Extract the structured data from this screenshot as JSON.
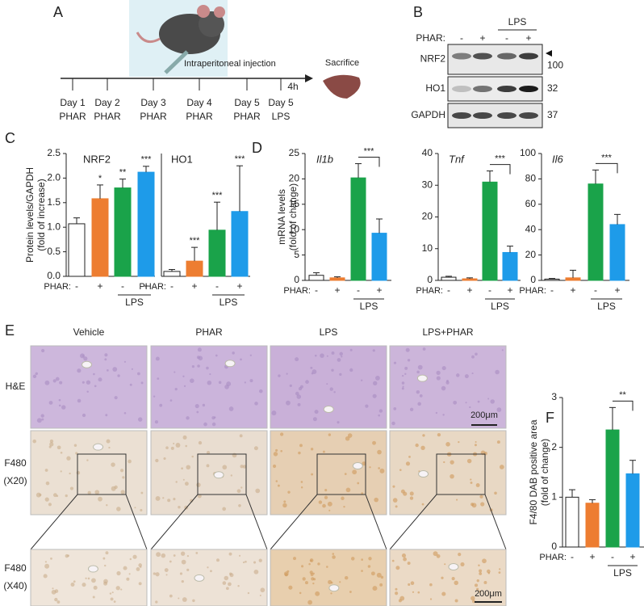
{
  "panel_labels": [
    "A",
    "B",
    "C",
    "D",
    "E",
    "F"
  ],
  "schematic": {
    "days": [
      {
        "day": "Day 1",
        "treatment": "PHAR"
      },
      {
        "day": "Day 2",
        "treatment": "PHAR"
      },
      {
        "day": "Day 3",
        "treatment": "PHAR"
      },
      {
        "day": "Day 4",
        "treatment": "PHAR"
      },
      {
        "day": "Day 5",
        "treatment": "PHAR"
      },
      {
        "day": "Day 5",
        "treatment": "LPS"
      }
    ],
    "injection": "Intraperitoneal injection",
    "interval": "4h",
    "endpoint": "Sacrifice"
  },
  "blot": {
    "treatment_header": "LPS",
    "row_label": "PHAR:",
    "lanes": [
      "-",
      "+",
      "-",
      "+"
    ],
    "bands": [
      {
        "name": "NRF2",
        "size": "100"
      },
      {
        "name": "HO1",
        "size": "32"
      },
      {
        "name": "GAPDH",
        "size": "37"
      }
    ]
  },
  "histology": {
    "columns": [
      "Vehicle",
      "PHAR",
      "LPS",
      "LPS+PHAR"
    ],
    "rows": [
      [
        "H&E"
      ],
      [
        "F480",
        "(X20)"
      ],
      [
        "F480",
        "(X40)"
      ]
    ],
    "scale_bar": "200μm"
  },
  "chart_data": [
    {
      "type": "bar",
      "title": "NRF2",
      "ylabel": [
        "Protein levels/GAPDH",
        "(fold of increase)"
      ],
      "x_prefix": "PHAR:",
      "categories": [
        "-",
        "+",
        "-",
        "+"
      ],
      "group_label": "LPS",
      "values": [
        1.07,
        1.58,
        1.8,
        2.12
      ],
      "errors": [
        0.12,
        0.28,
        0.18,
        0.12
      ],
      "colors": [
        "#ffffff",
        "#ed7d31",
        "#1aa34a",
        "#1e9be9"
      ],
      "significance": [
        {
          "bars": [
            1
          ],
          "label": "*"
        },
        {
          "bars": [
            2
          ],
          "label": "**"
        },
        {
          "bars": [
            3
          ],
          "label": "***"
        }
      ],
      "ylim": [
        0,
        2.5
      ],
      "yticks": [
        {
          "value": 0,
          "label": "0.0"
        },
        {
          "value": 0.5,
          "label": "0.5"
        },
        {
          "value": 1,
          "label": "1.0"
        },
        {
          "value": 1.5,
          "label": "1.5"
        },
        {
          "value": 2,
          "label": "2.0"
        },
        {
          "value": 2.5,
          "label": "2.5"
        }
      ]
    },
    {
      "type": "bar",
      "title": "HO1",
      "x_prefix": "PHAR:",
      "categories": [
        "-",
        "+",
        "-",
        "+"
      ],
      "group_label": "LPS",
      "values": [
        1,
        3.1,
        9.4,
        13.2
      ],
      "errors": [
        0.4,
        2.8,
        5.7,
        9.3
      ],
      "colors": [
        "#ffffff",
        "#ed7d31",
        "#1aa34a",
        "#1e9be9"
      ],
      "significance": [
        {
          "bars": [
            1
          ],
          "label": "***"
        },
        {
          "bars": [
            2
          ],
          "label": "***"
        },
        {
          "bars": [
            3
          ],
          "label": "***"
        }
      ],
      "ylim": [
        0,
        25
      ]
    },
    {
      "type": "bar",
      "title": "Il1b",
      "ylabel": [
        "mRNA levels",
        "(fold of change)"
      ],
      "x_prefix": "PHAR:",
      "categories": [
        "-",
        "+",
        "-",
        "+"
      ],
      "group_label": "LPS",
      "values": [
        1,
        0.5,
        20.2,
        9.3
      ],
      "errors": [
        0.5,
        0.2,
        2.8,
        2.8
      ],
      "colors": [
        "#ffffff",
        "#ed7d31",
        "#1aa34a",
        "#1e9be9"
      ],
      "significance": [
        {
          "bars": [
            2,
            3
          ],
          "label": "***"
        }
      ],
      "ylim": [
        0,
        25
      ],
      "yticks": [
        0,
        5,
        10,
        15,
        20,
        25
      ]
    },
    {
      "type": "bar",
      "title": "Tnf",
      "x_prefix": "PHAR:",
      "categories": [
        "-",
        "+",
        "-",
        "+"
      ],
      "group_label": "LPS",
      "values": [
        1,
        0.5,
        31,
        8.8
      ],
      "errors": [
        0.3,
        0.3,
        3.5,
        2
      ],
      "colors": [
        "#ffffff",
        "#ed7d31",
        "#1aa34a",
        "#1e9be9"
      ],
      "significance": [
        {
          "bars": [
            2,
            3
          ],
          "label": "***"
        }
      ],
      "ylim": [
        0,
        40
      ],
      "yticks": [
        0,
        10,
        20,
        30,
        40
      ]
    },
    {
      "type": "bar",
      "title": "Il6",
      "x_prefix": "PHAR:",
      "categories": [
        "-",
        "+",
        "-",
        "+"
      ],
      "group_label": "LPS",
      "values": [
        1,
        2,
        76,
        44
      ],
      "errors": [
        0.5,
        6,
        11,
        8
      ],
      "colors": [
        "#ffffff",
        "#ed7d31",
        "#1aa34a",
        "#1e9be9"
      ],
      "significance": [
        {
          "bars": [
            2,
            3
          ],
          "label": "***"
        }
      ],
      "ylim": [
        0,
        100
      ],
      "yticks": [
        0,
        20,
        40,
        60,
        80,
        100
      ]
    },
    {
      "type": "bar",
      "ylabel": [
        "F4/80 DAB positive area",
        "(fold of change)"
      ],
      "x_prefix": "PHAR:",
      "categories": [
        "-",
        "+",
        "-",
        "+"
      ],
      "group_label": "LPS",
      "values": [
        1,
        0.88,
        2.35,
        1.47
      ],
      "errors": [
        0.15,
        0.07,
        0.45,
        0.27
      ],
      "colors": [
        "#ffffff",
        "#ed7d31",
        "#1aa34a",
        "#1e9be9"
      ],
      "significance": [
        {
          "bars": [
            2,
            3
          ],
          "label": "**"
        }
      ],
      "ylim": [
        0,
        3
      ],
      "yticks": [
        0,
        1,
        2,
        3
      ]
    }
  ]
}
